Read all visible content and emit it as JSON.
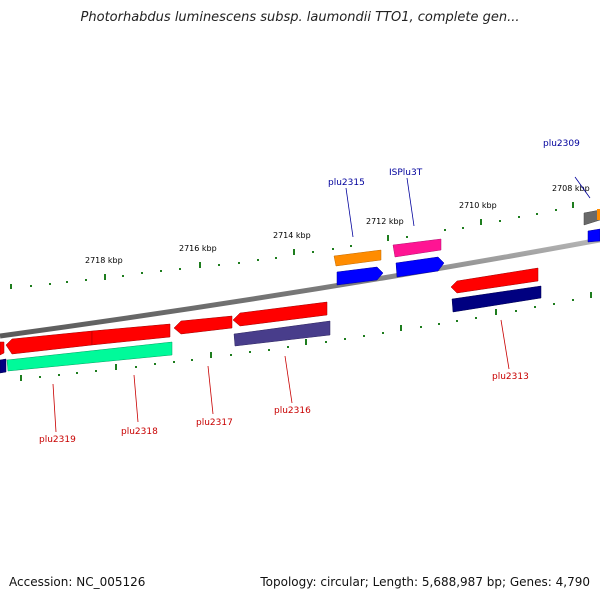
{
  "title": "Photorhabdus luminescens subsp. laumondii TTO1, complete gen...",
  "footer": {
    "accession": "Accession: NC_005126",
    "summary": "Topology: circular; Length: 5,688,987 bp; Genes: 4,790"
  },
  "colors": {
    "backbone": "#808080",
    "tick": "#1e7d1e",
    "label_forward": "#00009c",
    "label_reverse": "#c80000",
    "gene_red": "#ff0000",
    "gene_darkblue": "#000080",
    "gene_blue": "#0000ff",
    "gene_orange": "#ff8c00",
    "gene_pink": "#ff1493",
    "gene_green": "#00fa9a",
    "gene_purple": "#483d8b",
    "gene_gray": "#696969"
  },
  "scale_labels": [
    "2718 kbp",
    "2716 kbp",
    "2714 kbp",
    "2712 kbp",
    "2710 kbp",
    "2708 kbp"
  ],
  "gene_labels": {
    "top": [
      "plu2315",
      "ISPlu3T",
      "plu2309"
    ],
    "bottom": [
      "plu2319",
      "plu2318",
      "plu2317",
      "plu2316",
      "plu2313"
    ]
  }
}
